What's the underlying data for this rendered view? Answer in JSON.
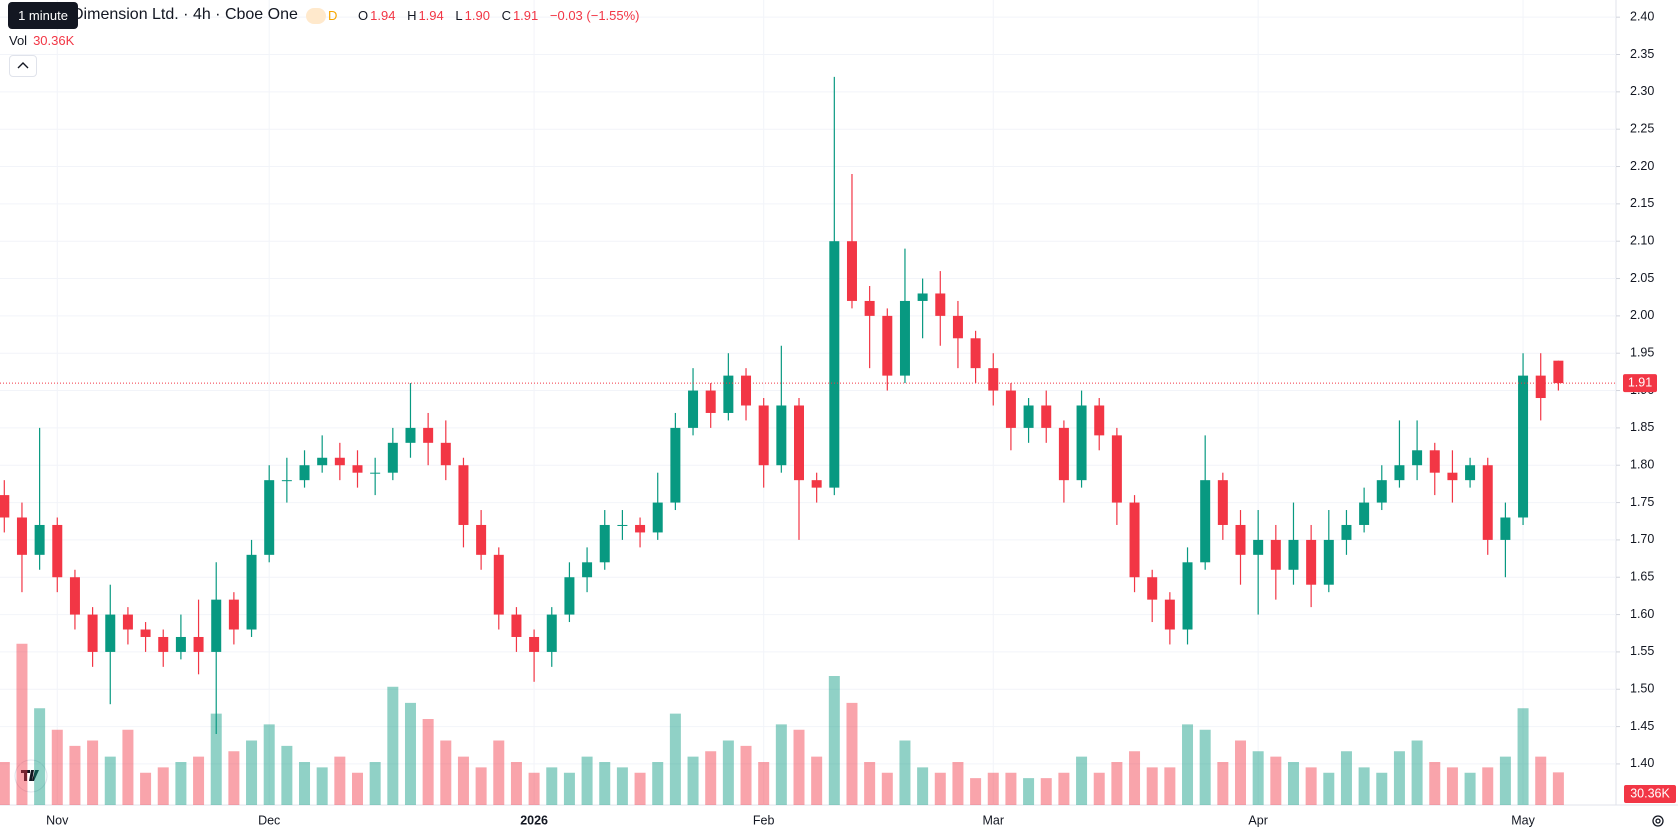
{
  "header": {
    "tooltip": "1 minute",
    "symbol": "Dimension Ltd. · 4h · Cboe One",
    "interval_badge": "D",
    "ohlc": [
      {
        "label": "O",
        "value": "1.94"
      },
      {
        "label": "H",
        "value": "1.94"
      },
      {
        "label": "L",
        "value": "1.90"
      },
      {
        "label": "C",
        "value": "1.91"
      }
    ],
    "change": "−0.03 (−1.55%)",
    "volume_label": "Vol",
    "volume_value": "30.36K"
  },
  "chart_data": {
    "type": "candlestick",
    "categories": [
      null,
      null,
      null,
      "Nov",
      null,
      null,
      null,
      null,
      null,
      null,
      null,
      null,
      null,
      null,
      null,
      "Dec",
      null,
      null,
      null,
      null,
      null,
      null,
      null,
      null,
      null,
      null,
      null,
      null,
      null,
      null,
      "2026",
      null,
      null,
      null,
      null,
      null,
      null,
      null,
      null,
      null,
      null,
      null,
      null,
      "Feb",
      null,
      null,
      null,
      null,
      null,
      null,
      null,
      null,
      null,
      null,
      null,
      null,
      "Mar",
      null,
      null,
      null,
      null,
      null,
      null,
      null,
      null,
      null,
      null,
      null,
      null,
      null,
      null,
      "Apr",
      null,
      null,
      null,
      null,
      null,
      null,
      null,
      null,
      null,
      null,
      null,
      null,
      null,
      null,
      "May",
      null,
      null
    ],
    "open": [
      1.76,
      1.73,
      1.68,
      1.72,
      1.65,
      1.6,
      1.55,
      1.6,
      1.58,
      1.57,
      1.55,
      1.57,
      1.55,
      1.62,
      1.58,
      1.68,
      1.78,
      1.78,
      1.8,
      1.81,
      1.8,
      1.79,
      1.79,
      1.83,
      1.85,
      1.83,
      1.8,
      1.72,
      1.68,
      1.6,
      1.57,
      1.55,
      1.6,
      1.65,
      1.67,
      1.72,
      1.72,
      1.71,
      1.75,
      1.85,
      1.9,
      1.87,
      1.92,
      1.88,
      1.8,
      1.88,
      1.78,
      1.77,
      2.1,
      2.02,
      2.0,
      1.92,
      2.02,
      2.03,
      2.0,
      1.97,
      1.93,
      1.9,
      1.85,
      1.88,
      1.85,
      1.78,
      1.88,
      1.84,
      1.75,
      1.65,
      1.62,
      1.58,
      1.67,
      1.78,
      1.72,
      1.68,
      1.7,
      1.66,
      1.7,
      1.64,
      1.7,
      1.72,
      1.75,
      1.78,
      1.8,
      1.82,
      1.79,
      1.78,
      1.8,
      1.7,
      1.73,
      1.92,
      1.94
    ],
    "high": [
      1.78,
      1.75,
      1.85,
      1.73,
      1.66,
      1.61,
      1.64,
      1.61,
      1.59,
      1.58,
      1.6,
      1.62,
      1.67,
      1.63,
      1.7,
      1.8,
      1.81,
      1.82,
      1.84,
      1.83,
      1.82,
      1.81,
      1.85,
      1.91,
      1.87,
      1.86,
      1.81,
      1.74,
      1.69,
      1.61,
      1.58,
      1.61,
      1.67,
      1.69,
      1.74,
      1.74,
      1.73,
      1.79,
      1.87,
      1.93,
      1.91,
      1.95,
      1.93,
      1.89,
      1.96,
      1.89,
      1.79,
      2.32,
      2.19,
      2.04,
      2.01,
      2.09,
      2.05,
      2.06,
      2.02,
      1.98,
      1.95,
      1.91,
      1.89,
      1.9,
      1.86,
      1.9,
      1.89,
      1.85,
      1.76,
      1.66,
      1.63,
      1.69,
      1.84,
      1.79,
      1.74,
      1.74,
      1.72,
      1.75,
      1.72,
      1.74,
      1.74,
      1.77,
      1.8,
      1.86,
      1.86,
      1.83,
      1.82,
      1.81,
      1.81,
      1.75,
      1.95,
      1.95,
      1.94
    ],
    "low": [
      1.71,
      1.63,
      1.66,
      1.63,
      1.58,
      1.53,
      1.48,
      1.56,
      1.55,
      1.53,
      1.54,
      1.52,
      1.44,
      1.56,
      1.57,
      1.67,
      1.75,
      1.77,
      1.79,
      1.78,
      1.77,
      1.76,
      1.78,
      1.81,
      1.8,
      1.78,
      1.69,
      1.66,
      1.58,
      1.55,
      1.51,
      1.53,
      1.59,
      1.63,
      1.66,
      1.7,
      1.69,
      1.7,
      1.74,
      1.84,
      1.85,
      1.86,
      1.86,
      1.77,
      1.79,
      1.7,
      1.75,
      1.76,
      2.01,
      1.93,
      1.9,
      1.91,
      1.97,
      1.96,
      1.93,
      1.91,
      1.88,
      1.82,
      1.83,
      1.83,
      1.75,
      1.77,
      1.82,
      1.72,
      1.63,
      1.59,
      1.56,
      1.56,
      1.66,
      1.7,
      1.64,
      1.6,
      1.62,
      1.64,
      1.61,
      1.63,
      1.68,
      1.71,
      1.74,
      1.77,
      1.78,
      1.76,
      1.75,
      1.77,
      1.68,
      1.65,
      1.72,
      1.86,
      1.9
    ],
    "close": [
      1.73,
      1.68,
      1.72,
      1.65,
      1.6,
      1.55,
      1.6,
      1.58,
      1.57,
      1.55,
      1.57,
      1.55,
      1.62,
      1.58,
      1.68,
      1.78,
      1.78,
      1.8,
      1.81,
      1.8,
      1.79,
      1.79,
      1.83,
      1.85,
      1.83,
      1.8,
      1.72,
      1.68,
      1.6,
      1.57,
      1.55,
      1.6,
      1.65,
      1.67,
      1.72,
      1.72,
      1.71,
      1.75,
      1.85,
      1.9,
      1.87,
      1.92,
      1.88,
      1.8,
      1.88,
      1.78,
      1.77,
      2.1,
      2.02,
      2.0,
      1.92,
      2.02,
      2.03,
      2.0,
      1.97,
      1.93,
      1.9,
      1.85,
      1.88,
      1.85,
      1.78,
      1.88,
      1.84,
      1.75,
      1.65,
      1.62,
      1.58,
      1.67,
      1.78,
      1.72,
      1.68,
      1.7,
      1.66,
      1.7,
      1.64,
      1.7,
      1.72,
      1.75,
      1.78,
      1.8,
      1.82,
      1.79,
      1.78,
      1.8,
      1.7,
      1.73,
      1.92,
      1.89,
      1.91
    ],
    "volume": [
      40,
      150,
      90,
      70,
      55,
      60,
      45,
      70,
      30,
      35,
      40,
      45,
      85,
      50,
      60,
      75,
      55,
      40,
      35,
      45,
      30,
      40,
      110,
      95,
      80,
      60,
      45,
      35,
      60,
      40,
      30,
      35,
      30,
      45,
      40,
      35,
      30,
      40,
      85,
      45,
      50,
      60,
      55,
      40,
      75,
      70,
      45,
      120,
      95,
      40,
      30,
      60,
      35,
      30,
      40,
      25,
      30,
      30,
      25,
      25,
      30,
      45,
      30,
      40,
      50,
      35,
      35,
      75,
      70,
      40,
      60,
      50,
      45,
      40,
      35,
      30,
      50,
      35,
      30,
      50,
      60,
      40,
      35,
      30,
      35,
      45,
      90,
      45,
      30.36
    ],
    "up_color": "#089981",
    "down_color": "#f23645",
    "ylim": [
      1.345,
      2.423
    ],
    "yticks": [
      {
        "value": 1.4,
        "label": "1.40"
      },
      {
        "value": 1.45,
        "label": "1.45"
      },
      {
        "value": 1.5,
        "label": "1.50"
      },
      {
        "value": 1.55,
        "label": "1.55"
      },
      {
        "value": 1.6,
        "label": "1.60"
      },
      {
        "value": 1.65,
        "label": "1.65"
      },
      {
        "value": 1.7,
        "label": "1.70"
      },
      {
        "value": 1.75,
        "label": "1.75"
      },
      {
        "value": 1.8,
        "label": "1.80"
      },
      {
        "value": 1.85,
        "label": "1.85"
      },
      {
        "value": 1.9,
        "label": "1.90"
      },
      {
        "value": 1.95,
        "label": "1.95"
      },
      {
        "value": 2.0,
        "label": "2.00"
      },
      {
        "value": 2.05,
        "label": "2.05"
      },
      {
        "value": 2.1,
        "label": "2.10"
      },
      {
        "value": 2.15,
        "label": "2.15"
      },
      {
        "value": 2.2,
        "label": "2.20"
      },
      {
        "value": 2.25,
        "label": "2.25"
      },
      {
        "value": 2.3,
        "label": "2.30"
      },
      {
        "value": 2.35,
        "label": "2.35"
      },
      {
        "value": 2.4,
        "label": "2.40"
      }
    ],
    "vlim": [
      0,
      200
    ],
    "last_price": {
      "value": 1.91,
      "label": "1.91"
    },
    "last_volume": {
      "value": 30.36,
      "label": "30.36K"
    },
    "grid": true
  }
}
